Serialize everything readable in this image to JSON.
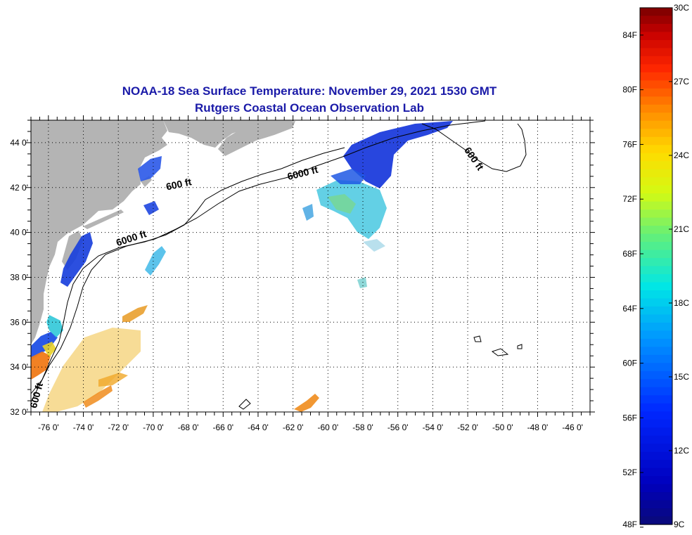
{
  "title": {
    "line1": "NOAA-18 Sea Surface Temperature:  November 29, 2021 1530 GMT",
    "line2": "Rutgers Coastal Ocean Observation Lab",
    "color": "#1a1aa8"
  },
  "map": {
    "lon_range": [
      -77,
      -45
    ],
    "lat_range": [
      32,
      45
    ],
    "lon_labels": [
      {
        "lon": -76,
        "text": "-76 0'"
      },
      {
        "lon": -74,
        "text": "-74 0'"
      },
      {
        "lon": -72,
        "text": "-72 0'"
      },
      {
        "lon": -70,
        "text": "-70 0'"
      },
      {
        "lon": -68,
        "text": "-68 0'"
      },
      {
        "lon": -66,
        "text": "-66 0'"
      },
      {
        "lon": -64,
        "text": "-64 0'"
      },
      {
        "lon": -62,
        "text": "-62 0'"
      },
      {
        "lon": -60,
        "text": "-60 0'"
      },
      {
        "lon": -58,
        "text": "-58 0'"
      },
      {
        "lon": -56,
        "text": "-56 0'"
      },
      {
        "lon": -54,
        "text": "-54 0'"
      },
      {
        "lon": -52,
        "text": "-52 0'"
      },
      {
        "lon": -50,
        "text": "-50 0'"
      },
      {
        "lon": -48,
        "text": "-48 0'"
      },
      {
        "lon": -46,
        "text": "-46 0'"
      }
    ],
    "lat_labels": [
      {
        "lat": 44,
        "text": "44 0'"
      },
      {
        "lat": 42,
        "text": "42 0'"
      },
      {
        "lat": 40,
        "text": "40 0'"
      },
      {
        "lat": 38,
        "text": "38 0'"
      },
      {
        "lat": 36,
        "text": "36 0'"
      },
      {
        "lat": 34,
        "text": "34 0'"
      },
      {
        "lat": 32,
        "text": "32 0'"
      }
    ],
    "contour_labels": [
      {
        "text": "600 ft",
        "lon": -68.5,
        "lat": 42.0,
        "angle": -12
      },
      {
        "text": "6000 ft",
        "lon": -61.4,
        "lat": 42.5,
        "angle": -14
      },
      {
        "text": "6000 ft",
        "lon": -71.2,
        "lat": 39.6,
        "angle": -18
      },
      {
        "text": "600 ft",
        "lon": -51.8,
        "lat": 43.2,
        "angle": 55
      },
      {
        "text": "600 ft",
        "lon": -76.5,
        "lat": 32.7,
        "angle": -75
      }
    ],
    "land_color": "#b4b4b4",
    "grid": true
  },
  "colorbar": {
    "range_c": [
      9,
      30
    ],
    "celsius_labels": [
      {
        "value": 30,
        "text": "30C"
      },
      {
        "value": 27,
        "text": "27C"
      },
      {
        "value": 24,
        "text": "24C"
      },
      {
        "value": 21,
        "text": "21C"
      },
      {
        "value": 18,
        "text": "18C"
      },
      {
        "value": 15,
        "text": "15C"
      },
      {
        "value": 12,
        "text": "12C"
      },
      {
        "value": 9,
        "text": "9C"
      }
    ],
    "fahrenheit_labels": [
      {
        "value": 84,
        "text": "84F"
      },
      {
        "value": 80,
        "text": "80F"
      },
      {
        "value": 76,
        "text": "76F"
      },
      {
        "value": 72,
        "text": "72F"
      },
      {
        "value": 68,
        "text": "68F"
      },
      {
        "value": 64,
        "text": "64F"
      },
      {
        "value": 60,
        "text": "60F"
      },
      {
        "value": 56,
        "text": "56F"
      },
      {
        "value": 52,
        "text": "52F"
      },
      {
        "value": 48,
        "text": "48F"
      }
    ]
  }
}
